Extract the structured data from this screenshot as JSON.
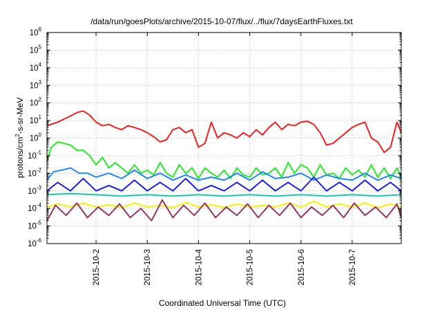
{
  "chart_data": {
    "type": "line",
    "title": "/data/run/goesPlots/archive/2015-10-07/flux/../flux/7daysEarthFluxes.txt",
    "xlabel": "Coordinated Universal Time (UTC)",
    "ylabel": "protons/cm2-s-sr-MeV",
    "y_scale": "log",
    "ylim": [
      1e-06,
      1000000.0
    ],
    "xlim": [
      "2015-10-01T01:00",
      "2015-10-07T23:00"
    ],
    "grid": true,
    "y_ticks": [
      {
        "base": "10",
        "exp": "-6"
      },
      {
        "base": "10",
        "exp": "-5"
      },
      {
        "base": "10",
        "exp": "-4"
      },
      {
        "base": "10",
        "exp": "-3"
      },
      {
        "base": "10",
        "exp": "-2"
      },
      {
        "base": "10",
        "exp": "-1"
      },
      {
        "base": "10",
        "exp": "0"
      },
      {
        "base": "10",
        "exp": "1"
      },
      {
        "base": "10",
        "exp": "2"
      },
      {
        "base": "10",
        "exp": "3"
      },
      {
        "base": "10",
        "exp": "4"
      },
      {
        "base": "10",
        "exp": "5"
      },
      {
        "base": "10",
        "exp": "6"
      }
    ],
    "x_ticks": [
      "2015-10-2",
      "2015-10-3",
      "2015-10-4",
      "2015-10-5",
      "2015-10-6",
      "2015-10-7"
    ],
    "x_tick_dates": [
      "2015-10-02",
      "2015-10-03",
      "2015-10-04",
      "2015-10-05",
      "2015-10-06",
      "2015-10-07"
    ],
    "series": [
      {
        "color": "#ff1a1a",
        "x": [
          "2015-10-01T01:00",
          "2015-10-01T03:00",
          "2015-10-01T06:00",
          "2015-10-01T09:00",
          "2015-10-01T12:00",
          "2015-10-01T15:00",
          "2015-10-01T18:00",
          "2015-10-01T21:00",
          "2015-10-02T00:00",
          "2015-10-02T03:00",
          "2015-10-02T06:00",
          "2015-10-02T09:00",
          "2015-10-02T12:00",
          "2015-10-02T15:00",
          "2015-10-02T18:00",
          "2015-10-02T21:00",
          "2015-10-03T00:00",
          "2015-10-03T03:00",
          "2015-10-03T06:00",
          "2015-10-03T09:00",
          "2015-10-03T12:00",
          "2015-10-03T15:00",
          "2015-10-03T18:00",
          "2015-10-03T21:00",
          "2015-10-04T00:00",
          "2015-10-04T03:00",
          "2015-10-04T06:00",
          "2015-10-04T09:00",
          "2015-10-04T12:00",
          "2015-10-04T15:00",
          "2015-10-04T18:00",
          "2015-10-04T21:00",
          "2015-10-05T00:00",
          "2015-10-05T03:00",
          "2015-10-05T06:00",
          "2015-10-05T09:00",
          "2015-10-05T12:00",
          "2015-10-05T15:00",
          "2015-10-05T18:00",
          "2015-10-05T21:00",
          "2015-10-06T00:00",
          "2015-10-06T03:00",
          "2015-10-06T06:00",
          "2015-10-06T09:00",
          "2015-10-06T12:00",
          "2015-10-06T15:00",
          "2015-10-06T18:00",
          "2015-10-06T21:00",
          "2015-10-07T00:00",
          "2015-10-07T03:00",
          "2015-10-07T06:00",
          "2015-10-07T09:00",
          "2015-10-07T12:00",
          "2015-10-07T15:00",
          "2015-10-07T18:00",
          "2015-10-07T21:00",
          "2015-10-07T23:00"
        ],
        "values": [
          5,
          6,
          8,
          12,
          18,
          28,
          35,
          20,
          8,
          5,
          6,
          4,
          3,
          5,
          4,
          3,
          2,
          1.2,
          0.6,
          0.8,
          3,
          4,
          2,
          3,
          0.3,
          0.5,
          8,
          1,
          2,
          1.5,
          1,
          2,
          1.2,
          3,
          1.5,
          4,
          8,
          3,
          6,
          5,
          8,
          9,
          6,
          2,
          0.4,
          0.5,
          1,
          2,
          4,
          6,
          8,
          1,
          0.6,
          0.15,
          0.3,
          8,
          2
        ]
      },
      {
        "color": "#22ee22",
        "x": [
          "2015-10-01T01:00",
          "2015-10-01T03:00",
          "2015-10-01T06:00",
          "2015-10-01T09:00",
          "2015-10-01T12:00",
          "2015-10-01T15:00",
          "2015-10-01T18:00",
          "2015-10-01T21:00",
          "2015-10-02T00:00",
          "2015-10-02T03:00",
          "2015-10-02T06:00",
          "2015-10-02T09:00",
          "2015-10-02T12:00",
          "2015-10-02T15:00",
          "2015-10-02T18:00",
          "2015-10-02T21:00",
          "2015-10-03T00:00",
          "2015-10-03T03:00",
          "2015-10-03T06:00",
          "2015-10-03T09:00",
          "2015-10-03T12:00",
          "2015-10-03T15:00",
          "2015-10-03T18:00",
          "2015-10-03T21:00",
          "2015-10-04T00:00",
          "2015-10-04T03:00",
          "2015-10-04T06:00",
          "2015-10-04T09:00",
          "2015-10-04T12:00",
          "2015-10-04T15:00",
          "2015-10-04T18:00",
          "2015-10-04T21:00",
          "2015-10-05T00:00",
          "2015-10-05T03:00",
          "2015-10-05T06:00",
          "2015-10-05T09:00",
          "2015-10-05T12:00",
          "2015-10-05T15:00",
          "2015-10-05T18:00",
          "2015-10-05T21:00",
          "2015-10-06T00:00",
          "2015-10-06T03:00",
          "2015-10-06T06:00",
          "2015-10-06T09:00",
          "2015-10-06T12:00",
          "2015-10-06T15:00",
          "2015-10-06T18:00",
          "2015-10-06T21:00",
          "2015-10-07T00:00",
          "2015-10-07T03:00",
          "2015-10-07T06:00",
          "2015-10-07T09:00",
          "2015-10-07T12:00",
          "2015-10-07T15:00",
          "2015-10-07T18:00",
          "2015-10-07T21:00",
          "2015-10-07T23:00"
        ],
        "values": [
          0.05,
          0.3,
          0.6,
          0.5,
          0.4,
          0.2,
          0.2,
          0.1,
          0.03,
          0.08,
          0.02,
          0.04,
          0.02,
          0.01,
          0.03,
          0.01,
          0.015,
          0.008,
          0.04,
          0.01,
          0.006,
          0.03,
          0.01,
          0.02,
          0.005,
          0.02,
          0.01,
          0.006,
          0.015,
          0.005,
          0.02,
          0.008,
          0.006,
          0.02,
          0.008,
          0.01,
          0.02,
          0.006,
          0.04,
          0.01,
          0.03,
          0.02,
          0.006,
          0.03,
          0.008,
          0.01,
          0.005,
          0.02,
          0.008,
          0.015,
          0.006,
          0.03,
          0.006,
          0.02,
          0.005,
          0.02,
          0.006
        ]
      },
      {
        "color": "#1a88ff",
        "x": [
          "2015-10-01T01:00",
          "2015-10-01T04:00",
          "2015-10-01T08:00",
          "2015-10-01T12:00",
          "2015-10-01T16:00",
          "2015-10-01T20:00",
          "2015-10-02T00:00",
          "2015-10-02T06:00",
          "2015-10-02T12:00",
          "2015-10-02T18:00",
          "2015-10-03T00:00",
          "2015-10-03T06:00",
          "2015-10-03T12:00",
          "2015-10-03T18:00",
          "2015-10-04T00:00",
          "2015-10-04T06:00",
          "2015-10-04T12:00",
          "2015-10-04T18:00",
          "2015-10-05T00:00",
          "2015-10-05T06:00",
          "2015-10-05T12:00",
          "2015-10-05T18:00",
          "2015-10-06T00:00",
          "2015-10-06T06:00",
          "2015-10-06T12:00",
          "2015-10-06T18:00",
          "2015-10-07T00:00",
          "2015-10-07T06:00",
          "2015-10-07T12:00",
          "2015-10-07T18:00",
          "2015-10-07T23:00"
        ],
        "values": [
          0.004,
          0.012,
          0.015,
          0.02,
          0.01,
          0.01,
          0.006,
          0.01,
          0.005,
          0.015,
          0.005,
          0.01,
          0.004,
          0.008,
          0.004,
          0.006,
          0.004,
          0.01,
          0.004,
          0.012,
          0.005,
          0.006,
          0.01,
          0.004,
          0.008,
          0.005,
          0.004,
          0.01,
          0.004,
          0.008,
          0.005
        ]
      },
      {
        "color": "#1a1aff",
        "x": [
          "2015-10-01T01:00",
          "2015-10-01T06:00",
          "2015-10-01T12:00",
          "2015-10-01T18:00",
          "2015-10-02T00:00",
          "2015-10-02T06:00",
          "2015-10-02T12:00",
          "2015-10-02T18:00",
          "2015-10-03T00:00",
          "2015-10-03T06:00",
          "2015-10-03T12:00",
          "2015-10-03T18:00",
          "2015-10-04T00:00",
          "2015-10-04T06:00",
          "2015-10-04T12:00",
          "2015-10-04T18:00",
          "2015-10-05T00:00",
          "2015-10-05T06:00",
          "2015-10-05T12:00",
          "2015-10-05T18:00",
          "2015-10-06T00:00",
          "2015-10-06T06:00",
          "2015-10-06T12:00",
          "2015-10-06T18:00",
          "2015-10-07T00:00",
          "2015-10-07T06:00",
          "2015-10-07T12:00",
          "2015-10-07T18:00",
          "2015-10-07T23:00"
        ],
        "values": [
          0.001,
          0.003,
          0.001,
          0.005,
          0.001,
          0.002,
          0.001,
          0.004,
          0.001,
          0.003,
          0.001,
          0.005,
          0.001,
          0.002,
          0.001,
          0.003,
          0.001,
          0.004,
          0.001,
          0.003,
          0.001,
          0.006,
          0.001,
          0.003,
          0.001,
          0.004,
          0.001,
          0.003,
          0.001
        ]
      },
      {
        "color": "#11ccaa",
        "x": [
          "2015-10-01T01:00",
          "2015-10-01T12:00",
          "2015-10-02T00:00",
          "2015-10-02T12:00",
          "2015-10-03T00:00",
          "2015-10-03T12:00",
          "2015-10-04T00:00",
          "2015-10-04T12:00",
          "2015-10-05T00:00",
          "2015-10-05T12:00",
          "2015-10-06T00:00",
          "2015-10-06T12:00",
          "2015-10-07T00:00",
          "2015-10-07T12:00",
          "2015-10-07T23:00"
        ],
        "values": [
          0.0006,
          0.0007,
          0.0006,
          0.0005,
          0.0006,
          0.0005,
          0.0006,
          0.0005,
          0.0006,
          0.0005,
          0.0006,
          0.0005,
          0.0006,
          0.0005,
          0.0006
        ]
      },
      {
        "color": "#ffee00",
        "x": [
          "2015-10-01T01:00",
          "2015-10-01T06:00",
          "2015-10-01T12:00",
          "2015-10-01T18:00",
          "2015-10-02T00:00",
          "2015-10-02T06:00",
          "2015-10-02T12:00",
          "2015-10-02T18:00",
          "2015-10-03T00:00",
          "2015-10-03T06:00",
          "2015-10-03T12:00",
          "2015-10-03T18:00",
          "2015-10-04T00:00",
          "2015-10-04T06:00",
          "2015-10-04T12:00",
          "2015-10-04T18:00",
          "2015-10-05T00:00",
          "2015-10-05T06:00",
          "2015-10-05T12:00",
          "2015-10-05T18:00",
          "2015-10-06T00:00",
          "2015-10-06T06:00",
          "2015-10-06T12:00",
          "2015-10-06T18:00",
          "2015-10-07T00:00",
          "2015-10-07T06:00",
          "2015-10-07T12:00",
          "2015-10-07T18:00",
          "2015-10-07T23:00"
        ],
        "values": [
          0.00012,
          0.00018,
          0.00012,
          0.0002,
          0.00012,
          0.00016,
          0.00011,
          0.0002,
          0.00012,
          0.00015,
          0.00011,
          0.00022,
          0.00012,
          0.00016,
          0.00011,
          0.00018,
          0.00012,
          0.00015,
          0.00012,
          0.0002,
          0.00012,
          0.00025,
          0.00012,
          0.00018,
          0.00012,
          0.0002,
          0.00011,
          0.00018,
          0.00012
        ]
      },
      {
        "color": "#993366",
        "x": [
          "2015-10-01T01:00",
          "2015-10-01T05:00",
          "2015-10-01T10:00",
          "2015-10-01T15:00",
          "2015-10-01T20:00",
          "2015-10-02T01:00",
          "2015-10-02T06:00",
          "2015-10-02T11:00",
          "2015-10-02T16:00",
          "2015-10-02T21:00",
          "2015-10-03T02:00",
          "2015-10-03T07:00",
          "2015-10-03T12:00",
          "2015-10-03T17:00",
          "2015-10-03T22:00",
          "2015-10-04T03:00",
          "2015-10-04T08:00",
          "2015-10-04T13:00",
          "2015-10-04T18:00",
          "2015-10-04T23:00",
          "2015-10-05T04:00",
          "2015-10-05T09:00",
          "2015-10-05T14:00",
          "2015-10-05T19:00",
          "2015-10-06T00:00",
          "2015-10-06T05:00",
          "2015-10-06T10:00",
          "2015-10-06T15:00",
          "2015-10-06T20:00",
          "2015-10-07T01:00",
          "2015-10-07T06:00",
          "2015-10-07T11:00",
          "2015-10-07T16:00",
          "2015-10-07T21:00",
          "2015-10-07T23:00"
        ],
        "values": [
          2e-05,
          0.00015,
          4e-05,
          0.0002,
          3e-05,
          0.00012,
          4e-05,
          0.00018,
          3e-05,
          0.0001,
          2e-05,
          0.0003,
          3e-05,
          0.00015,
          4e-05,
          0.0002,
          3e-05,
          0.00012,
          4e-05,
          0.00018,
          3e-05,
          0.00015,
          4e-05,
          0.0002,
          3e-05,
          0.00012,
          4e-05,
          0.00015,
          3e-05,
          0.0002,
          4e-05,
          0.00012,
          3e-05,
          0.00018,
          3e-05
        ]
      }
    ]
  }
}
